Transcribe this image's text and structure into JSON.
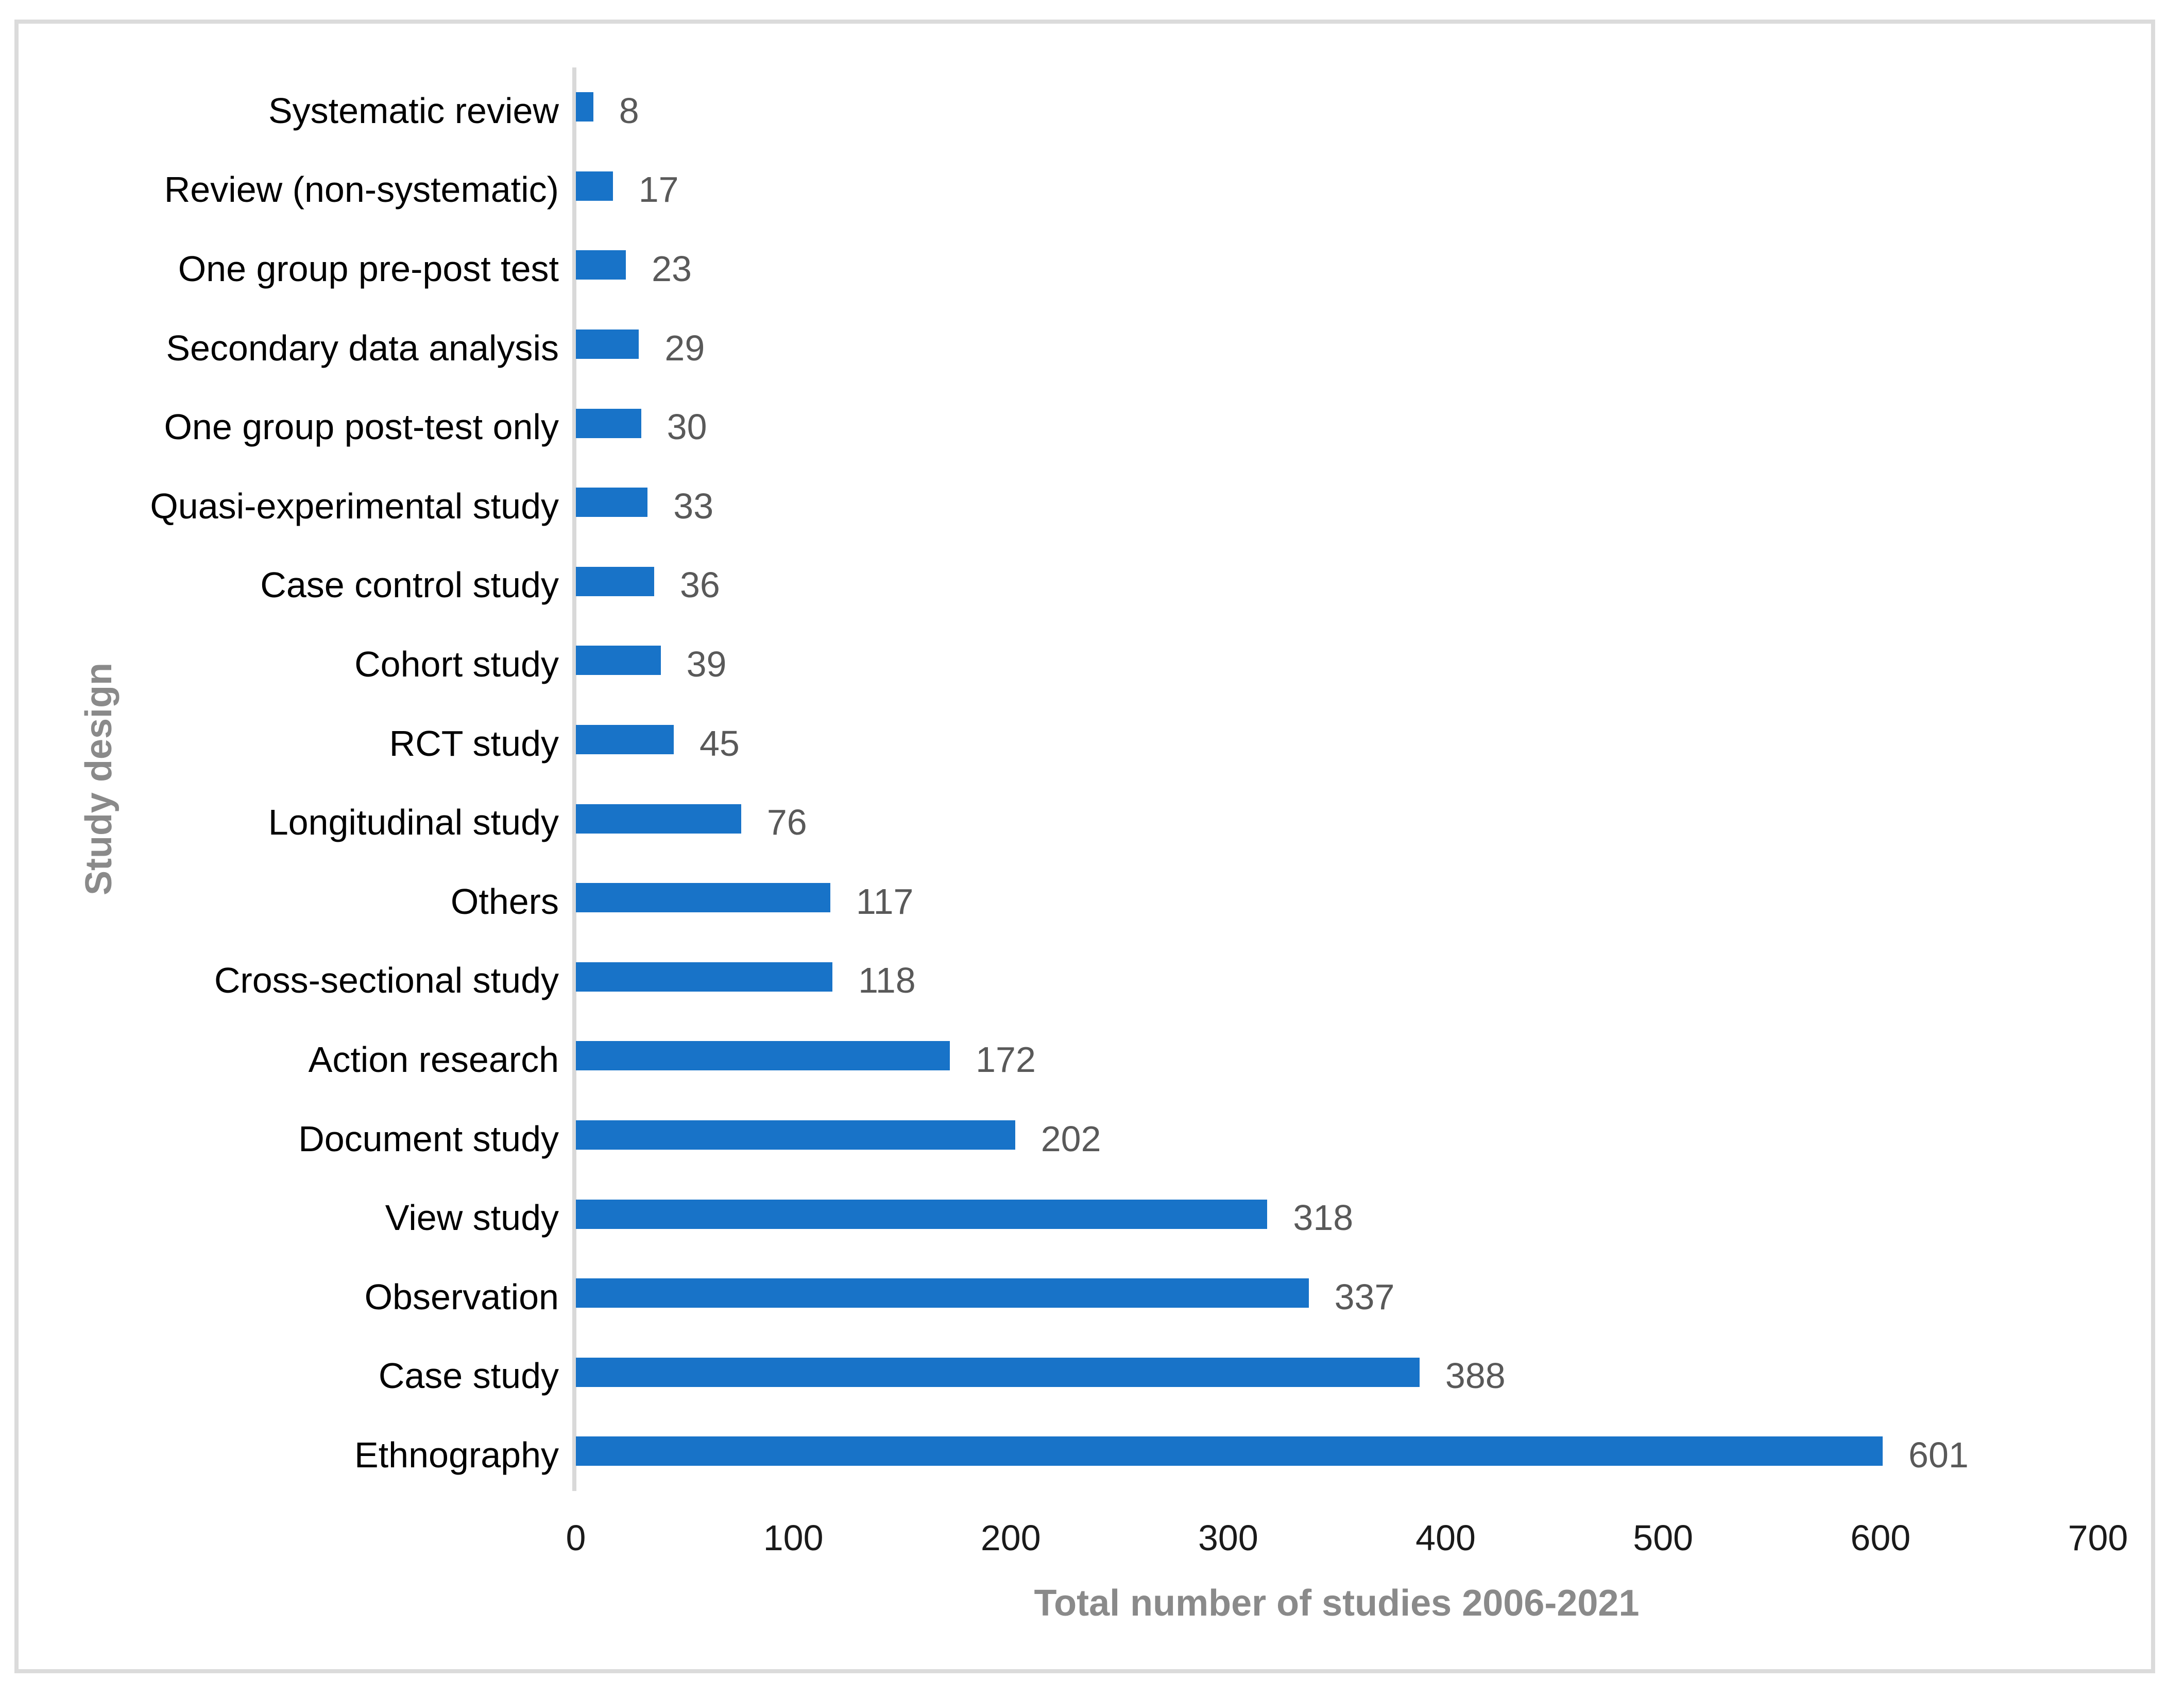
{
  "figure": {
    "border_color": "#DBDBDB",
    "background_color": "#ffffff"
  },
  "chart_data": {
    "type": "bar",
    "orientation": "horizontal",
    "title": "",
    "xlabel": "Total number of studies 2006-2021",
    "ylabel": "Study design",
    "categories": [
      "Systematic review",
      "Review (non-systematic)",
      "One group pre-post test",
      "Secondary data analysis",
      "One group post-test only",
      "Quasi-experimental study",
      "Case control study",
      "Cohort study",
      "RCT study",
      "Longitudinal study",
      "Others",
      "Cross-sectional study",
      "Action research",
      "Document study",
      "View study",
      "Observation",
      "Case study",
      "Ethnography"
    ],
    "values": [
      8,
      17,
      23,
      29,
      30,
      33,
      36,
      39,
      45,
      76,
      117,
      118,
      172,
      202,
      318,
      337,
      388,
      601
    ],
    "data_labels_shown": true,
    "xticks": [
      0,
      100,
      200,
      300,
      400,
      500,
      600,
      700
    ],
    "xlim": [
      0,
      700
    ],
    "grid": "off",
    "legend": "none",
    "bar_color": "#1873C8",
    "axis_line_color": "#D9D9D9",
    "category_label_color": "#000000",
    "tick_label_color": "#1a1a1a",
    "value_label_color": "#595959",
    "axis_title_color": "#8A8A8A"
  }
}
